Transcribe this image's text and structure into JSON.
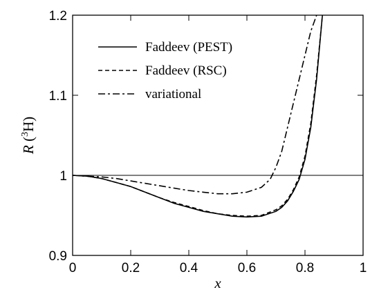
{
  "chart_data": {
    "type": "line",
    "xlabel": "x",
    "ylabel": {
      "symbol": "R",
      "open": " (",
      "superscript": "3",
      "nucleus": "H",
      "close": ")"
    },
    "xlim": [
      0,
      1
    ],
    "ylim": [
      0.9,
      1.2
    ],
    "x_ticks": [
      0,
      0.2,
      0.4,
      0.6,
      0.8,
      1
    ],
    "x_tick_labels": [
      "0",
      "0.2",
      "0.4",
      "0.6",
      "0.8",
      "1"
    ],
    "y_ticks": [
      0.9,
      1.0,
      1.1,
      1.2
    ],
    "y_tick_labels": [
      "0.9",
      "1",
      "1.1",
      "1.2"
    ],
    "grid": false,
    "legend_position": "top-left",
    "reference_line": {
      "y": 1.0
    },
    "series": [
      {
        "name": "Faddeev (PEST)",
        "style": "solid",
        "color": "#000000",
        "x": [
          0,
          0.05,
          0.1,
          0.15,
          0.2,
          0.25,
          0.3,
          0.35,
          0.4,
          0.45,
          0.5,
          0.55,
          0.6,
          0.65,
          0.7,
          0.72,
          0.74,
          0.76,
          0.78,
          0.8,
          0.82,
          0.84,
          0.86
        ],
        "y": [
          1.0,
          0.999,
          0.996,
          0.991,
          0.986,
          0.979,
          0.972,
          0.965,
          0.96,
          0.955,
          0.952,
          0.949,
          0.948,
          0.949,
          0.955,
          0.96,
          0.968,
          0.98,
          0.995,
          1.02,
          1.06,
          1.12,
          1.2
        ]
      },
      {
        "name": "Faddeev (RSC)",
        "style": "dashed",
        "color": "#000000",
        "x": [
          0,
          0.05,
          0.1,
          0.15,
          0.2,
          0.25,
          0.3,
          0.35,
          0.4,
          0.45,
          0.5,
          0.55,
          0.6,
          0.65,
          0.7,
          0.72,
          0.74,
          0.76,
          0.78,
          0.8,
          0.82,
          0.84,
          0.86
        ],
        "y": [
          1.0,
          0.999,
          0.996,
          0.991,
          0.986,
          0.979,
          0.972,
          0.966,
          0.961,
          0.956,
          0.952,
          0.95,
          0.949,
          0.95,
          0.957,
          0.962,
          0.97,
          0.982,
          0.998,
          1.024,
          1.065,
          1.125,
          1.2
        ]
      },
      {
        "name": "variational",
        "style": "dashdot",
        "color": "#000000",
        "x": [
          0,
          0.05,
          0.1,
          0.15,
          0.2,
          0.25,
          0.3,
          0.35,
          0.4,
          0.45,
          0.5,
          0.55,
          0.6,
          0.65,
          0.68,
          0.7,
          0.72,
          0.74,
          0.76,
          0.78,
          0.8,
          0.82,
          0.83,
          0.84
        ],
        "y": [
          1.0,
          0.999,
          0.998,
          0.996,
          0.993,
          0.99,
          0.987,
          0.984,
          0.981,
          0.979,
          0.977,
          0.977,
          0.979,
          0.985,
          0.995,
          1.01,
          1.03,
          1.06,
          1.09,
          1.12,
          1.15,
          1.18,
          1.19,
          1.2
        ]
      }
    ]
  }
}
